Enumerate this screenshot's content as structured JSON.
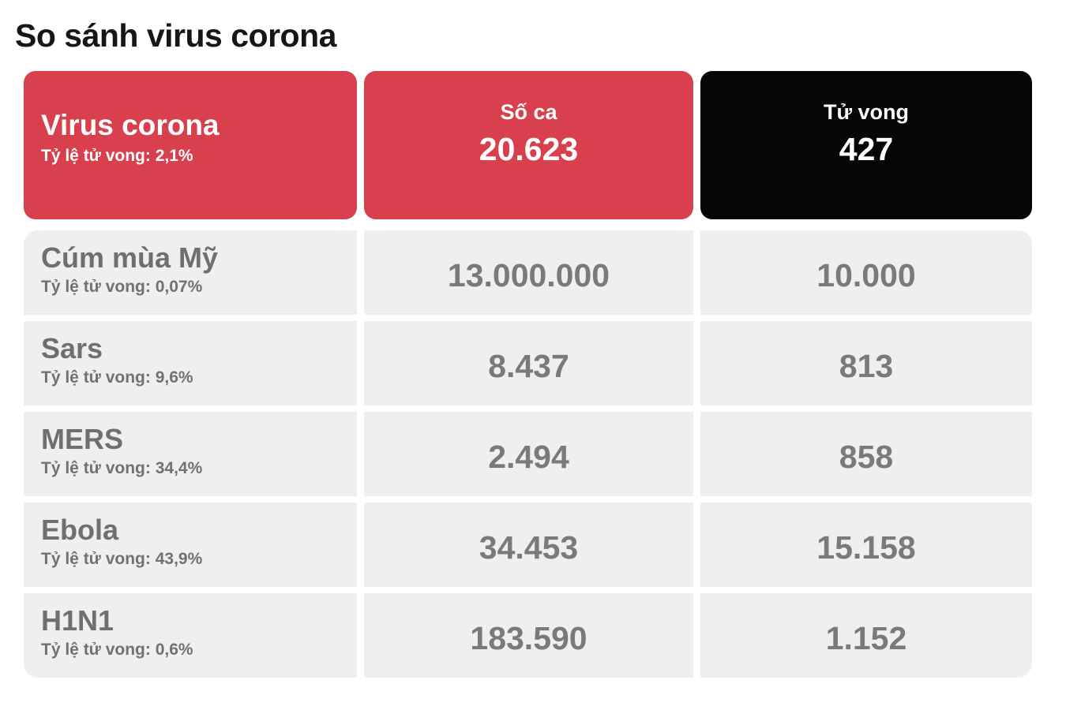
{
  "title": "So sánh virus corona",
  "colors": {
    "accent_red": "#d8404d",
    "header_black": "#060606",
    "row_background": "#efefef",
    "row_text_gray": "#717171",
    "title_text": "#161616",
    "header_text": "#ffffff"
  },
  "header": {
    "virus_name": "Virus corona",
    "virus_rate": "Tỷ lệ tử vong: 2,1%",
    "cases_label": "Số ca",
    "cases_value": "20.623",
    "deaths_label": "Tử vong",
    "deaths_value": "427"
  },
  "rows": [
    {
      "name": "Cúm mùa Mỹ",
      "rate": "Tỷ lệ tử vong: 0,07%",
      "cases": "13.000.000",
      "deaths": "10.000"
    },
    {
      "name": "Sars",
      "rate": "Tỷ lệ tử vong: 9,6%",
      "cases": "8.437",
      "deaths": "813"
    },
    {
      "name": "MERS",
      "rate": "Tỷ lệ tử vong: 34,4%",
      "cases": "2.494",
      "deaths": "858"
    },
    {
      "name": "Ebola",
      "rate": "Tỷ lệ tử vong: 43,9%",
      "cases": "34.453",
      "deaths": "15.158"
    },
    {
      "name": "H1N1",
      "rate": "Tỷ lệ tử vong: 0,6%",
      "cases": "183.590",
      "deaths": "1.152"
    }
  ],
  "chart_data": {
    "type": "table",
    "title": "So sánh virus corona",
    "columns": [
      "Virus",
      "Tỷ lệ tử vong",
      "Số ca",
      "Tử vong"
    ],
    "rows": [
      [
        "Virus corona",
        "2,1%",
        20623,
        427
      ],
      [
        "Cúm mùa Mỹ",
        "0,07%",
        13000000,
        10000
      ],
      [
        "Sars",
        "9,6%",
        8437,
        813
      ],
      [
        "MERS",
        "34,4%",
        2494,
        858
      ],
      [
        "Ebola",
        "43,9%",
        34453,
        15158
      ],
      [
        "H1N1",
        "0,6%",
        183590,
        1152
      ]
    ],
    "notes": "Infographic comparison table; header row highlighted (red = virus corona cases, black = deaths)"
  }
}
